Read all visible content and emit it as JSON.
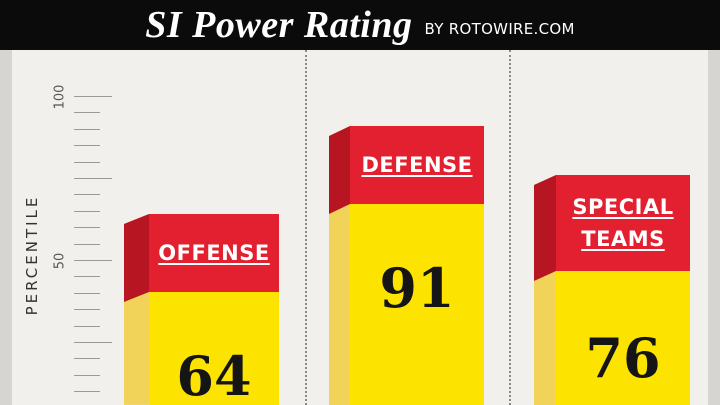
{
  "header": {
    "title": "SI Power Rating",
    "byline": "BY ROTOWIRE.COM"
  },
  "colors": {
    "header_bg": "#0b0b0b",
    "bar_front": "#fde300",
    "bar_side": "#f2d35a",
    "label_block": "#e2202f",
    "label_side": "#b71521",
    "background": "#f2f0ec"
  },
  "chart_data": {
    "type": "bar",
    "title": "SI Power Rating",
    "subtitle": "BY ROTOWIRE.COM",
    "ylabel": "PERCENTILE",
    "ylim": [
      0,
      100
    ],
    "yticks": [
      50,
      100
    ],
    "categories": [
      [
        "OFFENSE"
      ],
      [
        "DEFENSE"
      ],
      [
        "SPECIAL",
        "TEAMS"
      ]
    ],
    "values": [
      64,
      91,
      76
    ],
    "grid": false,
    "legend": "none"
  }
}
